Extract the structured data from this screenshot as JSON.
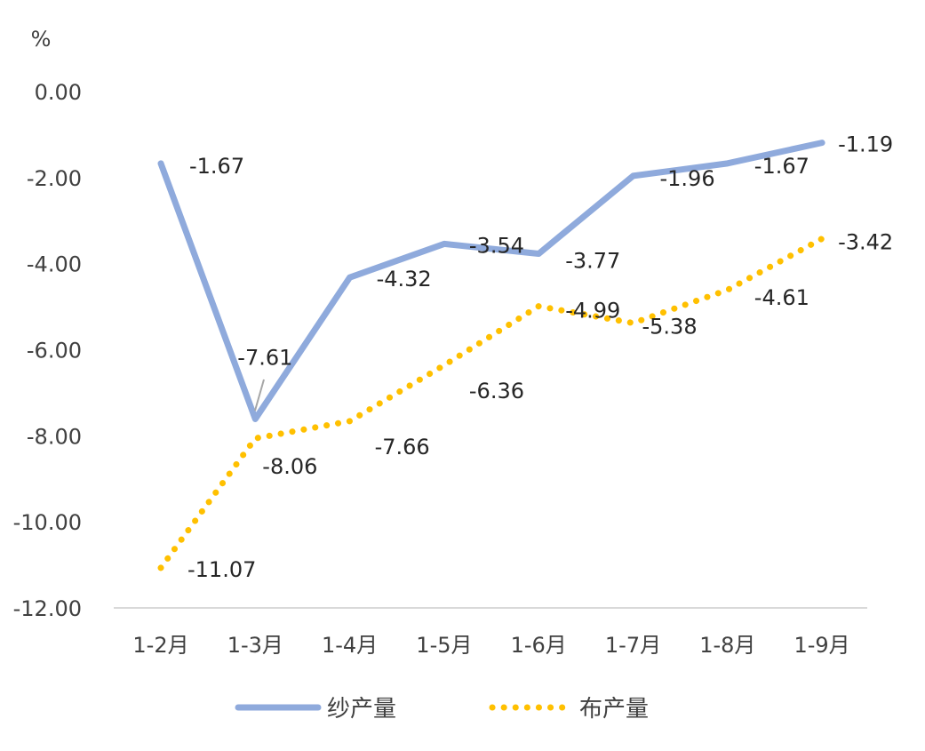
{
  "chart_data": {
    "type": "line",
    "unit_label": "%",
    "categories": [
      "1-2月",
      "1-3月",
      "1-4月",
      "1-5月",
      "1-6月",
      "1-7月",
      "1-8月",
      "1-9月"
    ],
    "ylim": [
      -12,
      0
    ],
    "yticks": [
      "0.00",
      "-2.00",
      "-4.00",
      "-6.00",
      "-8.00",
      "-10.00",
      "-12.00"
    ],
    "grid": false,
    "legend_position": "bottom",
    "series": [
      {
        "name": "纱产量",
        "color": "#8faadc",
        "style": "solid",
        "values": [
          -1.67,
          -7.61,
          -4.32,
          -3.54,
          -3.77,
          -1.96,
          -1.67,
          -1.19
        ],
        "labels": [
          "-1.67",
          "-7.61",
          "-4.32",
          "-3.54",
          "-3.77",
          "-1.96",
          "-1.67",
          "-1.19"
        ]
      },
      {
        "name": "布产量",
        "color": "#ffc000",
        "style": "dotted",
        "values": [
          -11.07,
          -8.06,
          -7.66,
          -6.36,
          -4.99,
          -5.38,
          -4.61,
          -3.42
        ],
        "labels": [
          "-11.07",
          "-8.06",
          "-7.66",
          "-6.36",
          "-4.99",
          "-5.38",
          "-4.61",
          "-3.42"
        ]
      }
    ]
  }
}
